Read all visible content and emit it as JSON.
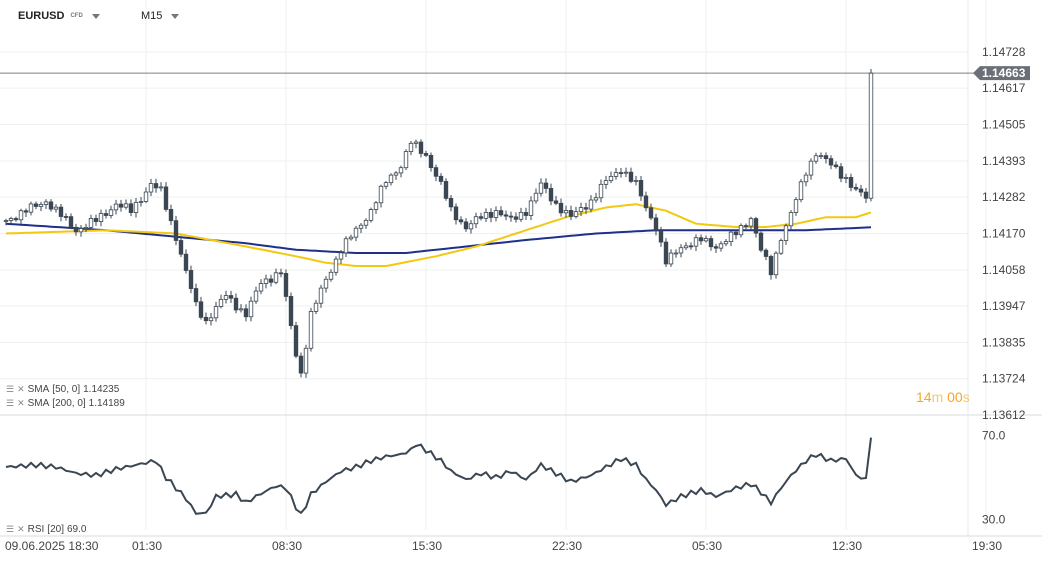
{
  "header": {
    "symbol": "EURUSD",
    "instrument_type": "CFD",
    "timeframe": "M15"
  },
  "indicators": [
    {
      "name": "SMA",
      "params": "[50, 0]",
      "value": "1.14235",
      "color": "#f2c811"
    },
    {
      "name": "SMA",
      "params": "[200, 0]",
      "value": "1.14189",
      "color": "#1f2f8a"
    }
  ],
  "rsi_legend": {
    "name": "RSI",
    "params": "[20]",
    "value": "69.0"
  },
  "countdown": {
    "minutes": "14",
    "minutes_unit": "m",
    "seconds": "00",
    "seconds_unit": "s"
  },
  "price_tag": "1.14663",
  "chart_data": [
    {
      "type": "candlestick",
      "y_ticks": [
        "1.14728",
        "1.14617",
        "1.14505",
        "1.14393",
        "1.14282",
        "1.14170",
        "1.14058",
        "1.13947",
        "1.13835",
        "1.13724",
        "1.13612"
      ],
      "x_ticks": [
        "09.06.2025  18:30",
        "01:30",
        "08:30",
        "15:30",
        "22:30",
        "05:30",
        "12:30",
        "19:30"
      ],
      "ylim": [
        1.13612,
        1.14728
      ],
      "current_price": 1.14663,
      "grid": true,
      "series": [
        {
          "name": "SMA [50, 0]",
          "color": "#f2c811"
        },
        {
          "name": "SMA [200, 0]",
          "color": "#1f2f8a"
        }
      ],
      "anchors": {
        "close": [
          [
            0,
            1.1421
          ],
          [
            8,
            1.1427
          ],
          [
            14,
            1.1418
          ],
          [
            18,
            1.1421
          ],
          [
            22,
            1.1426
          ],
          [
            25,
            1.1424
          ],
          [
            29,
            1.1432
          ],
          [
            31,
            1.143
          ],
          [
            34,
            1.1416
          ],
          [
            36,
            1.1405
          ],
          [
            38,
            1.1395
          ],
          [
            40,
            1.139
          ],
          [
            44,
            1.1398
          ],
          [
            48,
            1.1392
          ],
          [
            51,
            1.1402
          ],
          [
            55,
            1.1405
          ],
          [
            58,
            1.138
          ],
          [
            59,
            1.1374
          ],
          [
            61,
            1.1392
          ],
          [
            64,
            1.1403
          ],
          [
            67,
            1.1412
          ],
          [
            70,
            1.1418
          ],
          [
            73,
            1.1424
          ],
          [
            76,
            1.1433
          ],
          [
            79,
            1.1438
          ],
          [
            81,
            1.1445
          ],
          [
            84,
            1.1441
          ],
          [
            87,
            1.1432
          ],
          [
            89,
            1.1424
          ],
          [
            92,
            1.1419
          ],
          [
            95,
            1.1422
          ],
          [
            98,
            1.1424
          ],
          [
            101,
            1.1421
          ],
          [
            104,
            1.1424
          ],
          [
            107,
            1.1432
          ],
          [
            110,
            1.1426
          ],
          [
            113,
            1.1422
          ],
          [
            117,
            1.1427
          ],
          [
            120,
            1.1433
          ],
          [
            123,
            1.1437
          ],
          [
            126,
            1.1432
          ],
          [
            128,
            1.1425
          ],
          [
            130,
            1.1419
          ],
          [
            132,
            1.1408
          ],
          [
            135,
            1.1413
          ],
          [
            139,
            1.1415
          ],
          [
            142,
            1.1413
          ],
          [
            146,
            1.1417
          ],
          [
            149,
            1.1422
          ],
          [
            151,
            1.1412
          ],
          [
            153,
            1.1405
          ],
          [
            155,
            1.1416
          ],
          [
            157,
            1.1423
          ],
          [
            160,
            1.1436
          ],
          [
            162,
            1.1442
          ],
          [
            165,
            1.1438
          ],
          [
            168,
            1.1434
          ],
          [
            170,
            1.143
          ],
          [
            172,
            1.1428
          ],
          [
            173,
            1.1466
          ]
        ],
        "sma50": [
          [
            0,
            1.1417
          ],
          [
            20,
            1.1418
          ],
          [
            34,
            1.1417
          ],
          [
            48,
            1.1413
          ],
          [
            58,
            1.141
          ],
          [
            64,
            1.1408
          ],
          [
            70,
            1.1407
          ],
          [
            76,
            1.1407
          ],
          [
            86,
            1.141
          ],
          [
            94,
            1.1413
          ],
          [
            104,
            1.1418
          ],
          [
            112,
            1.1422
          ],
          [
            120,
            1.1425
          ],
          [
            126,
            1.1426
          ],
          [
            132,
            1.1424
          ],
          [
            138,
            1.142
          ],
          [
            146,
            1.1419
          ],
          [
            152,
            1.1419
          ],
          [
            158,
            1.142
          ],
          [
            164,
            1.1422
          ],
          [
            170,
            1.1422
          ],
          [
            173,
            1.14235
          ]
        ],
        "sma200": [
          [
            0,
            1.142
          ],
          [
            20,
            1.1418
          ],
          [
            34,
            1.1416
          ],
          [
            48,
            1.1414
          ],
          [
            58,
            1.1412
          ],
          [
            70,
            1.1411
          ],
          [
            80,
            1.1411
          ],
          [
            92,
            1.1413
          ],
          [
            104,
            1.1415
          ],
          [
            118,
            1.1417
          ],
          [
            130,
            1.1418
          ],
          [
            146,
            1.1418
          ],
          [
            160,
            1.1418
          ],
          [
            173,
            1.14189
          ]
        ]
      }
    },
    {
      "type": "line",
      "name": "RSI [20]",
      "y_ticks": [
        "70.0",
        "30.0"
      ],
      "ylim": [
        25,
        75
      ],
      "color": "#3a4652",
      "anchors": [
        [
          0,
          55
        ],
        [
          6,
          56
        ],
        [
          10,
          55
        ],
        [
          14,
          52
        ],
        [
          18,
          51
        ],
        [
          22,
          54
        ],
        [
          26,
          56
        ],
        [
          30,
          58
        ],
        [
          32,
          50
        ],
        [
          36,
          40
        ],
        [
          38,
          33
        ],
        [
          40,
          33
        ],
        [
          42,
          41
        ],
        [
          46,
          42
        ],
        [
          48,
          38
        ],
        [
          50,
          41
        ],
        [
          54,
          46
        ],
        [
          56,
          45
        ],
        [
          58,
          36
        ],
        [
          59,
          32
        ],
        [
          61,
          42
        ],
        [
          64,
          48
        ],
        [
          67,
          53
        ],
        [
          70,
          55
        ],
        [
          73,
          58
        ],
        [
          76,
          60
        ],
        [
          79,
          61
        ],
        [
          81,
          63
        ],
        [
          82,
          66
        ],
        [
          84,
          63
        ],
        [
          87,
          58
        ],
        [
          89,
          53
        ],
        [
          92,
          49
        ],
        [
          95,
          52
        ],
        [
          98,
          50
        ],
        [
          101,
          53
        ],
        [
          104,
          49
        ],
        [
          107,
          56
        ],
        [
          110,
          52
        ],
        [
          113,
          48
        ],
        [
          117,
          51
        ],
        [
          120,
          55
        ],
        [
          123,
          59
        ],
        [
          126,
          56
        ],
        [
          128,
          49
        ],
        [
          130,
          44
        ],
        [
          132,
          37
        ],
        [
          135,
          41
        ],
        [
          139,
          44
        ],
        [
          142,
          41
        ],
        [
          146,
          45
        ],
        [
          149,
          47
        ],
        [
          151,
          43
        ],
        [
          153,
          38
        ],
        [
          155,
          45
        ],
        [
          157,
          51
        ],
        [
          160,
          58
        ],
        [
          162,
          61
        ],
        [
          165,
          58
        ],
        [
          168,
          59
        ],
        [
          170,
          51
        ],
        [
          172,
          49
        ],
        [
          173,
          69
        ]
      ]
    }
  ]
}
